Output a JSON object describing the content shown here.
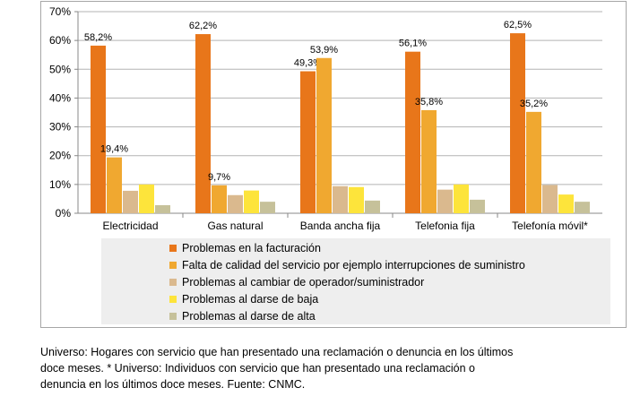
{
  "chart_data": {
    "type": "bar",
    "categories": [
      "Electricidad",
      "Gas natural",
      "Banda ancha fija",
      "Telefonia fija",
      "Telefonía móvil*"
    ],
    "series": [
      {
        "name": "Problemas en la facturación",
        "color": "#e8761a",
        "values": [
          58.2,
          62.2,
          49.3,
          56.1,
          62.5
        ],
        "labels": [
          "58,2%",
          "62,2%",
          "49,3%",
          "56,1%",
          "62,5%"
        ]
      },
      {
        "name": "Falta de calidad del servicio por ejemplo interrupciones de suministro",
        "color": "#f0a830",
        "values": [
          19.4,
          9.7,
          53.9,
          35.8,
          35.2
        ],
        "labels": [
          "19,4%",
          "9,7%",
          "53,9%",
          "35,8%",
          "35,2%"
        ]
      },
      {
        "name": "Problemas al cambiar de operador/suministrador",
        "color": "#dab98e",
        "values": [
          7.8,
          6.3,
          9.4,
          8.2,
          9.8
        ],
        "labels": [
          "",
          "",
          "",
          "",
          ""
        ]
      },
      {
        "name": "Problemas al darse de baja",
        "color": "#fde43b",
        "values": [
          10.0,
          7.9,
          9.1,
          10.0,
          6.5
        ],
        "labels": [
          "",
          "",
          "",
          "",
          ""
        ]
      },
      {
        "name": "Problemas al darse de alta",
        "color": "#c6c19a",
        "values": [
          2.8,
          4.0,
          4.4,
          4.7,
          4.0
        ],
        "labels": [
          "",
          "",
          "",
          "",
          ""
        ]
      }
    ],
    "ylim": [
      0,
      70
    ],
    "yticks": [
      "0%",
      "10%",
      "20%",
      "30%",
      "40%",
      "50%",
      "60%",
      "70%"
    ],
    "grid": true,
    "legend_position": "bottom"
  },
  "footnote": [
    "Universo: Hogares con servicio que han presentado una reclamación o denuncia en los últimos",
    "doce meses. * Universo: Individuos con servicio que han presentado una reclamación o",
    "denuncia en los últimos doce meses. Fuente: CNMC."
  ]
}
